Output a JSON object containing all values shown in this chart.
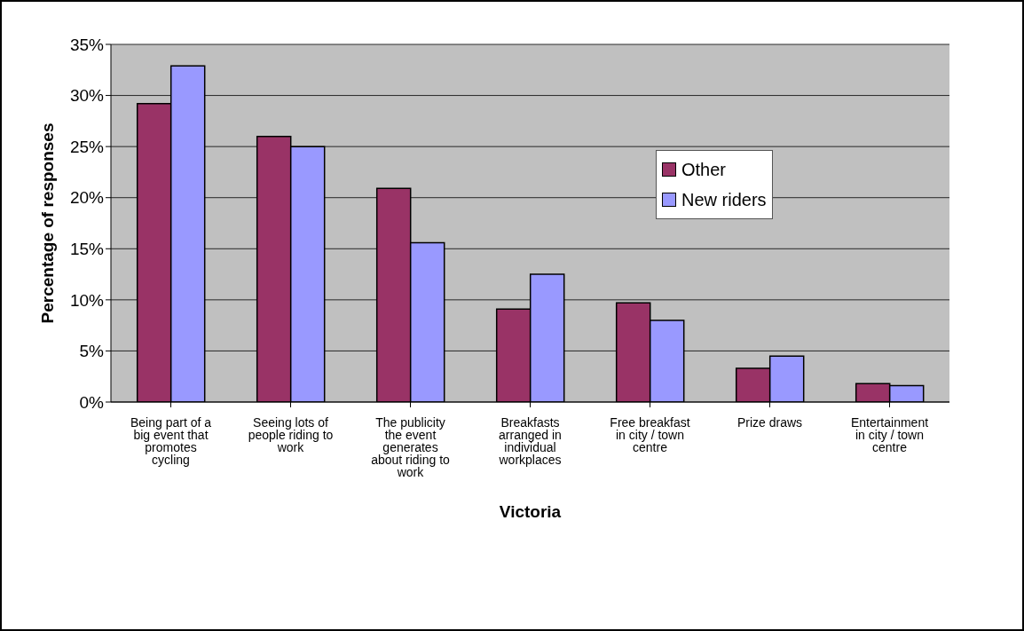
{
  "chart_data": {
    "type": "bar",
    "xlabel": "Victoria",
    "ylabel": "Percentage of responses",
    "categories": [
      "Being part of a big event that promotes cycling",
      "Seeing lots of people riding to work",
      "The publicity the event generates about riding to work",
      "Breakfasts arranged in individual workplaces",
      "Free breakfast in city / town centre",
      "Prize draws",
      "Entertainment in city / town centre"
    ],
    "series": [
      {
        "name": "Other",
        "color": "#993366",
        "values": [
          29.2,
          26.0,
          20.9,
          9.1,
          9.7,
          3.3,
          1.8
        ]
      },
      {
        "name": "New riders",
        "color": "#9999ff",
        "values": [
          32.9,
          25.0,
          15.6,
          12.5,
          8.0,
          4.5,
          1.6
        ]
      }
    ],
    "ylim": [
      0,
      35
    ],
    "yticks": [
      {
        "value": 0,
        "label": "0%"
      },
      {
        "value": 5,
        "label": "5%"
      },
      {
        "value": 10,
        "label": "10%"
      },
      {
        "value": 15,
        "label": "15%"
      },
      {
        "value": 20,
        "label": "20%"
      },
      {
        "value": 25,
        "label": "25%"
      },
      {
        "value": 30,
        "label": "30%"
      },
      {
        "value": 35,
        "label": "35%"
      }
    ],
    "grid": "y",
    "legend": "top right"
  }
}
